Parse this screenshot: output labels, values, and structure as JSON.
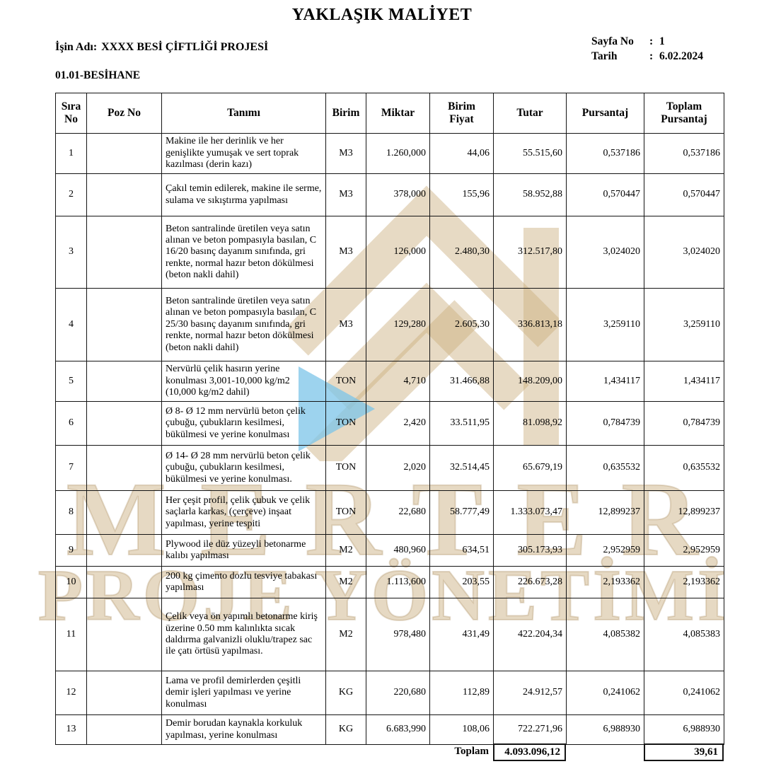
{
  "title": "YAKLAŞIK MALİYET",
  "header": {
    "job_label": "İşin Adı:",
    "job_name": "XXXX BESİ ÇİFTLİĞİ PROJESİ",
    "page_label": "Sayfa No",
    "page_colon": ":",
    "page_value": "1",
    "date_label": "Tarih",
    "date_colon": ":",
    "date_value": "6.02.2024",
    "section": "01.01-BESİHANE"
  },
  "watermark": {
    "line1": "MERTER",
    "line2": "PROJE YÖNETİMİ",
    "logo_gold": "#c9ad7d",
    "logo_blue": "#7cc4e8"
  },
  "table": {
    "columns": [
      "Sıra No",
      "Poz No",
      "Tanımı",
      "Birim",
      "Miktar",
      "Birim Fiyat",
      "Tutar",
      "Pursantaj",
      "Toplam Pursantaj"
    ],
    "rows": [
      {
        "no": "1",
        "poz": "",
        "desc": "Makine ile her derinlik ve her genişlikte yumuşak ve sert toprak kazılması (derin kazı)",
        "birim": "M3",
        "miktar": "1.260,000",
        "birim_fiyat": "44,06",
        "tutar": "55.515,60",
        "pursantaj": "0,537186",
        "toplam_pursantaj": "0,537186"
      },
      {
        "no": "2",
        "poz": "",
        "desc": "Çakıl temin edilerek, makine ile serme, sulama ve sıkıştırma yapılması",
        "birim": "M3",
        "miktar": "378,000",
        "birim_fiyat": "155,96",
        "tutar": "58.952,88",
        "pursantaj": "0,570447",
        "toplam_pursantaj": "0,570447"
      },
      {
        "no": "3",
        "poz": "",
        "desc": "Beton santralinde üretilen veya satın alınan ve beton pompasıyla basılan, C 16/20 basınç dayanım sınıfında, gri renkte, normal hazır beton dökülmesi (beton nakli dahil)",
        "birim": "M3",
        "miktar": "126,000",
        "birim_fiyat": "2.480,30",
        "tutar": "312.517,80",
        "pursantaj": "3,024020",
        "toplam_pursantaj": "3,024020"
      },
      {
        "no": "4",
        "poz": "",
        "desc": "Beton santralinde üretilen veya satın alınan ve beton pompasıyla basılan, C 25/30 basınç dayanım sınıfında, gri renkte, normal hazır beton dökülmesi (beton nakli dahil)",
        "birim": "M3",
        "miktar": "129,280",
        "birim_fiyat": "2.605,30",
        "tutar": "336.813,18",
        "pursantaj": "3,259110",
        "toplam_pursantaj": "3,259110"
      },
      {
        "no": "5",
        "poz": "",
        "desc": "Nervürlü çelik hasırın yerine konulması 3,001-10,000 kg/m2 (10,000 kg/m2 dahil)",
        "birim": "TON",
        "miktar": "4,710",
        "birim_fiyat": "31.466,88",
        "tutar": "148.209,00",
        "pursantaj": "1,434117",
        "toplam_pursantaj": "1,434117"
      },
      {
        "no": "6",
        "poz": "",
        "desc": "Ø 8- Ø 12 mm nervürlü beton çelik çubuğu, çubukların kesilmesi, bükülmesi ve yerine konulması",
        "birim": "TON",
        "miktar": "2,420",
        "birim_fiyat": "33.511,95",
        "tutar": "81.098,92",
        "pursantaj": "0,784739",
        "toplam_pursantaj": "0,784739"
      },
      {
        "no": "7",
        "poz": "",
        "desc": "Ø 14- Ø 28 mm nervürlü beton çelik çubuğu, çubukların kesilmesi, bükülmesi ve yerine konulması.",
        "birim": "TON",
        "miktar": "2,020",
        "birim_fiyat": "32.514,45",
        "tutar": "65.679,19",
        "pursantaj": "0,635532",
        "toplam_pursantaj": "0,635532"
      },
      {
        "no": "8",
        "poz": "",
        "desc": "Her çeşit profil, çelik çubuk ve çelik saçlarla karkas, (çerçeve) inşaat yapılması, yerine tespiti",
        "birim": "TON",
        "miktar": "22,680",
        "birim_fiyat": "58.777,49",
        "tutar": "1.333.073,47",
        "pursantaj": "12,899237",
        "toplam_pursantaj": "12,899237"
      },
      {
        "no": "9",
        "poz": "",
        "desc": "Plywood ile düz yüzeyli betonarme kalıbı yapılması",
        "birim": "M2",
        "miktar": "480,960",
        "birim_fiyat": "634,51",
        "tutar": "305.173,93",
        "pursantaj": "2,952959",
        "toplam_pursantaj": "2,952959"
      },
      {
        "no": "10",
        "poz": "",
        "desc": "200 kg çimento dozlu tesviye tabakası yapılması",
        "birim": "M2",
        "miktar": "1.113,600",
        "birim_fiyat": "203,55",
        "tutar": "226.673,28",
        "pursantaj": "2,193362",
        "toplam_pursantaj": "2,193362"
      },
      {
        "no": "11",
        "poz": "",
        "desc": "Çelik veya ön yapımlı betonarme kiriş üzerine 0.50 mm kalınlıkta sıcak daldırma galvanizli oluklu/trapez sac ile çatı örtüsü yapılması.",
        "birim": "M2",
        "miktar": "978,480",
        "birim_fiyat": "431,49",
        "tutar": "422.204,34",
        "pursantaj": "4,085382",
        "toplam_pursantaj": "4,085383"
      },
      {
        "no": "12",
        "poz": "",
        "desc": "Lama ve profil demirlerden çeşitli demir işleri yapılması ve yerine konulması",
        "birim": "KG",
        "miktar": "220,680",
        "birim_fiyat": "112,89",
        "tutar": "24.912,57",
        "pursantaj": "0,241062",
        "toplam_pursantaj": "0,241062"
      },
      {
        "no": "13",
        "poz": "",
        "desc": "Demir borudan kaynakla korkuluk yapılması, yerine konulması",
        "birim": "KG",
        "miktar": "6.683,990",
        "birim_fiyat": "108,06",
        "tutar": "722.271,96",
        "pursantaj": "6,988930",
        "toplam_pursantaj": "6,988930"
      }
    ],
    "total": {
      "label": "Toplam",
      "tutar": "4.093.096,12",
      "toplam_pursantaj": "39,61"
    }
  }
}
